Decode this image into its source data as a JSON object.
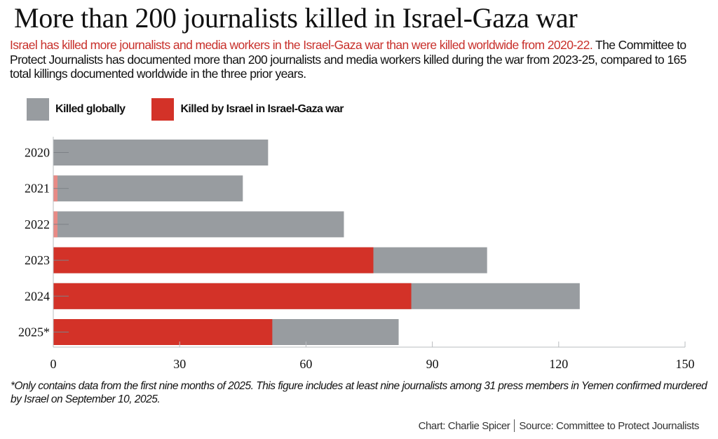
{
  "header": {
    "title": "More than 200 journalists killed in Israel-Gaza war",
    "subtitle_highlight": "Israel has killed more journalists and media workers in the Israel-Gaza war than were killed worldwide from 2020-22.",
    "subtitle_rest": " The Committee to Protect Journalists has documented more than 200 journalists and media workers killed during the war from 2023-25, compared to 165 total killings documented worldwide in the three prior years."
  },
  "legend": [
    {
      "label": "Killed globally",
      "color": "#989ca0"
    },
    {
      "label": "Killed by Israel in Israel-Gaza war",
      "color": "#d33228"
    }
  ],
  "chart_data": {
    "type": "bar",
    "orientation": "horizontal",
    "stacked": "overlay",
    "title": "More than 200 journalists killed in Israel-Gaza war",
    "xlabel": "",
    "ylabel": "",
    "categories": [
      "2020",
      "2021",
      "2022",
      "2023",
      "2024",
      "2025*"
    ],
    "series": [
      {
        "name": "Killed globally",
        "color": "#989ca0",
        "values": [
          51,
          45,
          69,
          103,
          125,
          82
        ]
      },
      {
        "name": "Killed by Israel in Israel-Gaza war",
        "color": "#d33228",
        "values": [
          0,
          1,
          1,
          76,
          85,
          52
        ]
      }
    ],
    "xlim": [
      0,
      150
    ],
    "xticks": [
      "0",
      "30",
      "60",
      "90",
      "120",
      "150"
    ],
    "xtick_values": [
      0,
      30,
      60,
      90,
      120,
      150
    ],
    "grid": false,
    "legend_position": "top-left",
    "muted_color_pre_war": "#e88a85"
  },
  "footer": {
    "footnote": "*Only contains data from the first nine months of 2025. This figure includes at least nine journalists among 31 press members in Yemen confirmed murdered by Israel on September 10, 2025.",
    "credit_chart": "Chart: Charlie Spicer",
    "credit_source": "Source: Committee to Protect Journalists"
  }
}
